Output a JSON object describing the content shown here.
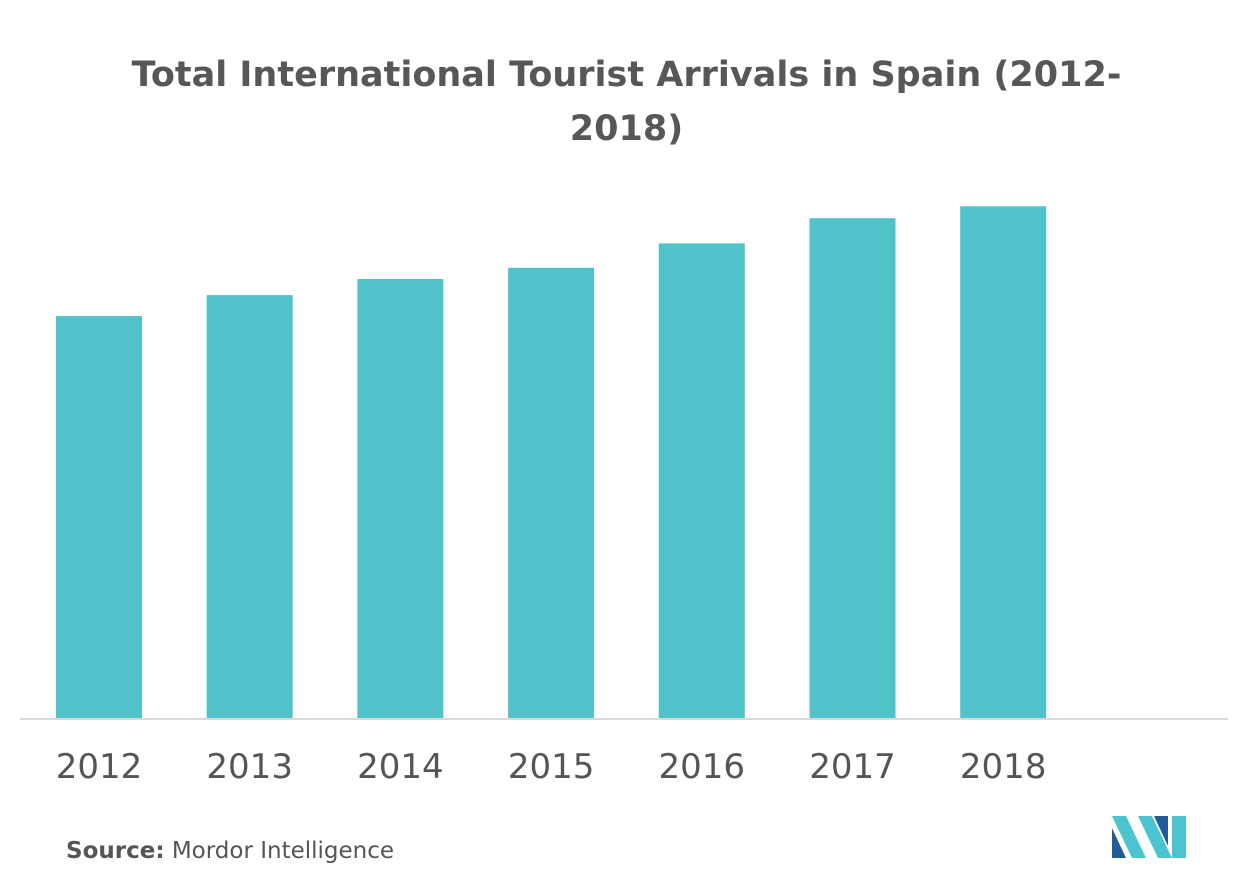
{
  "chart_data": {
    "type": "bar",
    "title": "Total International Tourist Arrivals in Spain (2012-2018)",
    "categories": [
      "2012",
      "2013",
      "2014",
      "2015",
      "2016",
      "2017",
      "2018"
    ],
    "values": [
      57.5,
      60.5,
      62.8,
      64.4,
      67.9,
      71.5,
      73.2
    ],
    "xlabel": "",
    "ylabel": "",
    "ylim": [
      0,
      75
    ],
    "grid": false,
    "bar_color": "#50C3CA"
  },
  "source": {
    "label": "Source:",
    "text": " Mordor Intelligence"
  },
  "logo": {
    "icon": "mordor-intelligence-logo-icon",
    "colors": [
      "#1F5C99",
      "#4CC4D0"
    ]
  }
}
